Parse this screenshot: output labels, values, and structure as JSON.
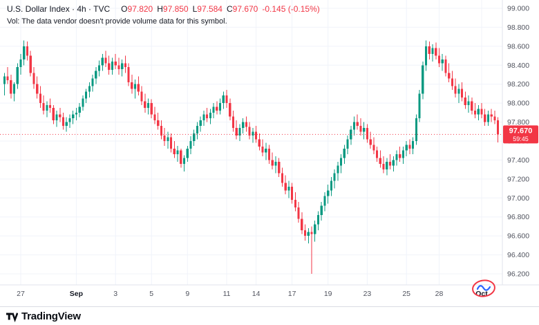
{
  "header": {
    "title": "U.S. Dollar Index · 4h · TVC",
    "ohlc": {
      "o_label": "O",
      "o": "97.820",
      "h_label": "H",
      "h": "97.850",
      "l_label": "L",
      "l": "97.584",
      "c_label": "C",
      "c": "97.670",
      "change": "-0.145 (-0.15%)"
    },
    "vol_note": "Vol: The data vendor doesn't provide volume data for this symbol."
  },
  "badge": {
    "price": "97.670",
    "countdown": "59:45"
  },
  "footer": {
    "brand": "TradingView"
  },
  "colors": {
    "up": "#089981",
    "down": "#F23645",
    "grid": "#f0f3fa",
    "separator": "#e0e3eb",
    "axis_text": "#50535e",
    "axis_text_major": "#131722",
    "badge_text": "#ffffff",
    "watermark_ring": "#F23645",
    "watermark_ink": "#2962FF"
  },
  "chart_data": {
    "type": "candlestick",
    "title": "U.S. Dollar Index",
    "interval": "4h",
    "exchange": "TVC",
    "last": {
      "open": 97.82,
      "high": 97.85,
      "low": 97.584,
      "close": 97.67,
      "change": -0.145,
      "change_pct": -0.15
    },
    "price_line": 97.67,
    "y_ticks": [
      99.0,
      98.8,
      98.6,
      98.4,
      98.2,
      98.0,
      97.8,
      97.6,
      97.4,
      97.2,
      97.0,
      96.8,
      96.6,
      96.4,
      96.2
    ],
    "x_labels": [
      {
        "label": "27",
        "index": 5,
        "major": false
      },
      {
        "label": "Sep",
        "index": 22,
        "major": true
      },
      {
        "label": "3",
        "index": 34,
        "major": false
      },
      {
        "label": "5",
        "index": 45,
        "major": false
      },
      {
        "label": "9",
        "index": 56,
        "major": false
      },
      {
        "label": "11",
        "index": 68,
        "major": false
      },
      {
        "label": "14",
        "index": 77,
        "major": false
      },
      {
        "label": "17",
        "index": 88,
        "major": false
      },
      {
        "label": "19",
        "index": 99,
        "major": false
      },
      {
        "label": "23",
        "index": 111,
        "major": false
      },
      {
        "label": "25",
        "index": 123,
        "major": false
      },
      {
        "label": "28",
        "index": 133,
        "major": false
      },
      {
        "label": "Oct",
        "index": 146,
        "major": true
      }
    ],
    "ohlc": [
      [
        98.2,
        98.32,
        98.08,
        98.28
      ],
      [
        98.28,
        98.38,
        98.2,
        98.24
      ],
      [
        98.24,
        98.3,
        98.05,
        98.1
      ],
      [
        98.1,
        98.22,
        98.02,
        98.2
      ],
      [
        98.2,
        98.42,
        98.15,
        98.38
      ],
      [
        98.38,
        98.52,
        98.3,
        98.46
      ],
      [
        98.46,
        98.66,
        98.4,
        98.6
      ],
      [
        98.6,
        98.65,
        98.45,
        98.5
      ],
      [
        98.5,
        98.55,
        98.28,
        98.32
      ],
      [
        98.32,
        98.38,
        98.15,
        98.2
      ],
      [
        98.2,
        98.28,
        98.05,
        98.1
      ],
      [
        98.1,
        98.18,
        97.95,
        98.0
      ],
      [
        98.0,
        98.08,
        97.88,
        97.92
      ],
      [
        97.92,
        98.02,
        97.85,
        97.98
      ],
      [
        97.98,
        98.05,
        97.9,
        97.95
      ],
      [
        97.95,
        97.98,
        97.78,
        97.82
      ],
      [
        97.82,
        97.92,
        97.75,
        97.88
      ],
      [
        97.88,
        97.95,
        97.8,
        97.85
      ],
      [
        97.85,
        97.9,
        97.72,
        97.76
      ],
      [
        97.76,
        97.85,
        97.7,
        97.8
      ],
      [
        97.8,
        97.88,
        97.74,
        97.84
      ],
      [
        97.84,
        97.92,
        97.78,
        97.88
      ],
      [
        97.88,
        97.95,
        97.82,
        97.9
      ],
      [
        97.9,
        98.0,
        97.85,
        97.96
      ],
      [
        97.96,
        98.08,
        97.92,
        98.05
      ],
      [
        98.05,
        98.15,
        98.0,
        98.12
      ],
      [
        98.12,
        98.22,
        98.06,
        98.18
      ],
      [
        98.18,
        98.3,
        98.12,
        98.26
      ],
      [
        98.26,
        98.38,
        98.2,
        98.34
      ],
      [
        98.34,
        98.45,
        98.28,
        98.4
      ],
      [
        98.4,
        98.52,
        98.34,
        98.48
      ],
      [
        98.48,
        98.55,
        98.38,
        98.42
      ],
      [
        98.42,
        98.5,
        98.3,
        98.35
      ],
      [
        98.35,
        98.48,
        98.3,
        98.44
      ],
      [
        98.44,
        98.52,
        98.36,
        98.4
      ],
      [
        98.4,
        98.48,
        98.3,
        98.36
      ],
      [
        98.36,
        98.46,
        98.28,
        98.42
      ],
      [
        98.42,
        98.5,
        98.32,
        98.38
      ],
      [
        98.38,
        98.42,
        98.18,
        98.22
      ],
      [
        98.22,
        98.3,
        98.1,
        98.15
      ],
      [
        98.15,
        98.25,
        98.05,
        98.2
      ],
      [
        98.2,
        98.28,
        98.08,
        98.12
      ],
      [
        98.12,
        98.18,
        97.98,
        98.02
      ],
      [
        98.02,
        98.1,
        97.9,
        97.95
      ],
      [
        97.95,
        98.05,
        97.88,
        98.0
      ],
      [
        98.0,
        98.04,
        97.84,
        97.88
      ],
      [
        97.88,
        97.96,
        97.78,
        97.82
      ],
      [
        97.82,
        97.9,
        97.72,
        97.76
      ],
      [
        97.76,
        97.82,
        97.62,
        97.66
      ],
      [
        97.66,
        97.74,
        97.55,
        97.6
      ],
      [
        97.6,
        97.7,
        97.52,
        97.64
      ],
      [
        97.64,
        97.68,
        97.48,
        97.52
      ],
      [
        97.52,
        97.6,
        97.42,
        97.46
      ],
      [
        97.46,
        97.55,
        97.38,
        97.5
      ],
      [
        97.5,
        97.52,
        97.32,
        97.36
      ],
      [
        97.36,
        97.45,
        97.28,
        97.42
      ],
      [
        97.42,
        97.55,
        97.38,
        97.52
      ],
      [
        97.52,
        97.65,
        97.46,
        97.6
      ],
      [
        97.6,
        97.72,
        97.55,
        97.68
      ],
      [
        97.68,
        97.8,
        97.62,
        97.76
      ],
      [
        97.76,
        97.86,
        97.7,
        97.82
      ],
      [
        97.82,
        97.92,
        97.76,
        97.88
      ],
      [
        97.88,
        97.95,
        97.8,
        97.84
      ],
      [
        97.84,
        97.94,
        97.78,
        97.9
      ],
      [
        97.9,
        98.0,
        97.84,
        97.96
      ],
      [
        97.96,
        98.02,
        97.88,
        97.92
      ],
      [
        97.92,
        98.05,
        97.88,
        98.0
      ],
      [
        98.0,
        98.12,
        97.94,
        98.08
      ],
      [
        98.08,
        98.14,
        97.95,
        98.0
      ],
      [
        98.0,
        98.05,
        97.82,
        97.86
      ],
      [
        97.86,
        97.92,
        97.7,
        97.74
      ],
      [
        97.74,
        97.82,
        97.62,
        97.66
      ],
      [
        97.66,
        97.78,
        97.6,
        97.74
      ],
      [
        97.74,
        97.84,
        97.68,
        97.8
      ],
      [
        97.8,
        97.86,
        97.7,
        97.75
      ],
      [
        97.75,
        97.8,
        97.62,
        97.66
      ],
      [
        97.66,
        97.74,
        97.58,
        97.7
      ],
      [
        97.7,
        97.76,
        97.58,
        97.62
      ],
      [
        97.62,
        97.68,
        97.5,
        97.54
      ],
      [
        97.54,
        97.62,
        97.44,
        97.48
      ],
      [
        97.48,
        97.58,
        97.4,
        97.52
      ],
      [
        97.52,
        97.56,
        97.36,
        97.4
      ],
      [
        97.4,
        97.48,
        97.3,
        97.34
      ],
      [
        97.34,
        97.44,
        97.26,
        97.38
      ],
      [
        97.38,
        97.42,
        97.22,
        97.26
      ],
      [
        97.26,
        97.32,
        97.12,
        97.16
      ],
      [
        97.16,
        97.24,
        97.04,
        97.08
      ],
      [
        97.08,
        97.18,
        97.0,
        97.12
      ],
      [
        97.12,
        97.16,
        96.94,
        96.98
      ],
      [
        96.98,
        97.06,
        96.86,
        96.9
      ],
      [
        96.9,
        96.96,
        96.74,
        96.78
      ],
      [
        96.78,
        96.85,
        96.62,
        96.66
      ],
      [
        96.66,
        96.72,
        96.55,
        96.6
      ],
      [
        96.6,
        96.68,
        96.52,
        96.64
      ],
      [
        96.64,
        96.7,
        96.2,
        96.62
      ],
      [
        96.62,
        96.76,
        96.54,
        96.72
      ],
      [
        96.72,
        96.86,
        96.66,
        96.82
      ],
      [
        96.82,
        96.96,
        96.76,
        96.92
      ],
      [
        96.92,
        97.06,
        96.86,
        97.02
      ],
      [
        97.02,
        97.14,
        96.94,
        97.08
      ],
      [
        97.08,
        97.22,
        97.02,
        97.18
      ],
      [
        97.18,
        97.3,
        97.1,
        97.26
      ],
      [
        97.26,
        97.38,
        97.18,
        97.34
      ],
      [
        97.34,
        97.46,
        97.26,
        97.42
      ],
      [
        97.42,
        97.56,
        97.36,
        97.52
      ],
      [
        97.52,
        97.66,
        97.46,
        97.62
      ],
      [
        97.62,
        97.76,
        97.56,
        97.72
      ],
      [
        97.72,
        97.86,
        97.66,
        97.8
      ],
      [
        97.8,
        97.88,
        97.72,
        97.76
      ],
      [
        97.76,
        97.84,
        97.66,
        97.7
      ],
      [
        97.7,
        97.8,
        97.62,
        97.74
      ],
      [
        97.74,
        97.78,
        97.58,
        97.62
      ],
      [
        97.62,
        97.7,
        97.52,
        97.56
      ],
      [
        97.56,
        97.64,
        97.46,
        97.5
      ],
      [
        97.5,
        97.54,
        97.38,
        97.42
      ],
      [
        97.42,
        97.5,
        97.32,
        97.36
      ],
      [
        97.36,
        97.44,
        97.26,
        97.3
      ],
      [
        97.3,
        97.42,
        97.24,
        97.38
      ],
      [
        97.38,
        97.46,
        97.3,
        97.34
      ],
      [
        97.34,
        97.44,
        97.28,
        97.4
      ],
      [
        97.4,
        97.5,
        97.34,
        97.46
      ],
      [
        97.46,
        97.54,
        97.38,
        97.42
      ],
      [
        97.42,
        97.54,
        97.36,
        97.5
      ],
      [
        97.5,
        97.6,
        97.44,
        97.56
      ],
      [
        97.56,
        97.62,
        97.46,
        97.52
      ],
      [
        97.52,
        97.64,
        97.46,
        97.6
      ],
      [
        97.6,
        97.88,
        97.56,
        97.84
      ],
      [
        97.84,
        98.14,
        97.8,
        98.1
      ],
      [
        98.1,
        98.44,
        98.04,
        98.4
      ],
      [
        98.4,
        98.66,
        98.34,
        98.6
      ],
      [
        98.6,
        98.65,
        98.46,
        98.52
      ],
      [
        98.52,
        98.62,
        98.44,
        98.58
      ],
      [
        98.58,
        98.64,
        98.46,
        98.5
      ],
      [
        98.5,
        98.58,
        98.38,
        98.42
      ],
      [
        98.42,
        98.52,
        98.34,
        98.46
      ],
      [
        98.46,
        98.5,
        98.28,
        98.32
      ],
      [
        98.32,
        98.42,
        98.22,
        98.26
      ],
      [
        98.26,
        98.34,
        98.14,
        98.18
      ],
      [
        98.18,
        98.26,
        98.06,
        98.1
      ],
      [
        98.1,
        98.2,
        98.0,
        98.15
      ],
      [
        98.15,
        98.22,
        98.02,
        98.06
      ],
      [
        98.06,
        98.12,
        97.94,
        97.98
      ],
      [
        97.98,
        98.08,
        97.9,
        98.02
      ],
      [
        98.02,
        98.06,
        97.88,
        97.92
      ],
      [
        97.92,
        98.0,
        97.84,
        97.88
      ],
      [
        97.88,
        97.98,
        97.82,
        97.94
      ],
      [
        97.94,
        98.0,
        97.84,
        97.88
      ],
      [
        97.88,
        97.94,
        97.76,
        97.8
      ],
      [
        97.8,
        97.92,
        97.76,
        97.88
      ],
      [
        97.88,
        97.94,
        97.8,
        97.86
      ],
      [
        97.86,
        97.92,
        97.78,
        97.82
      ],
      [
        97.82,
        97.85,
        97.584,
        97.67
      ]
    ]
  }
}
